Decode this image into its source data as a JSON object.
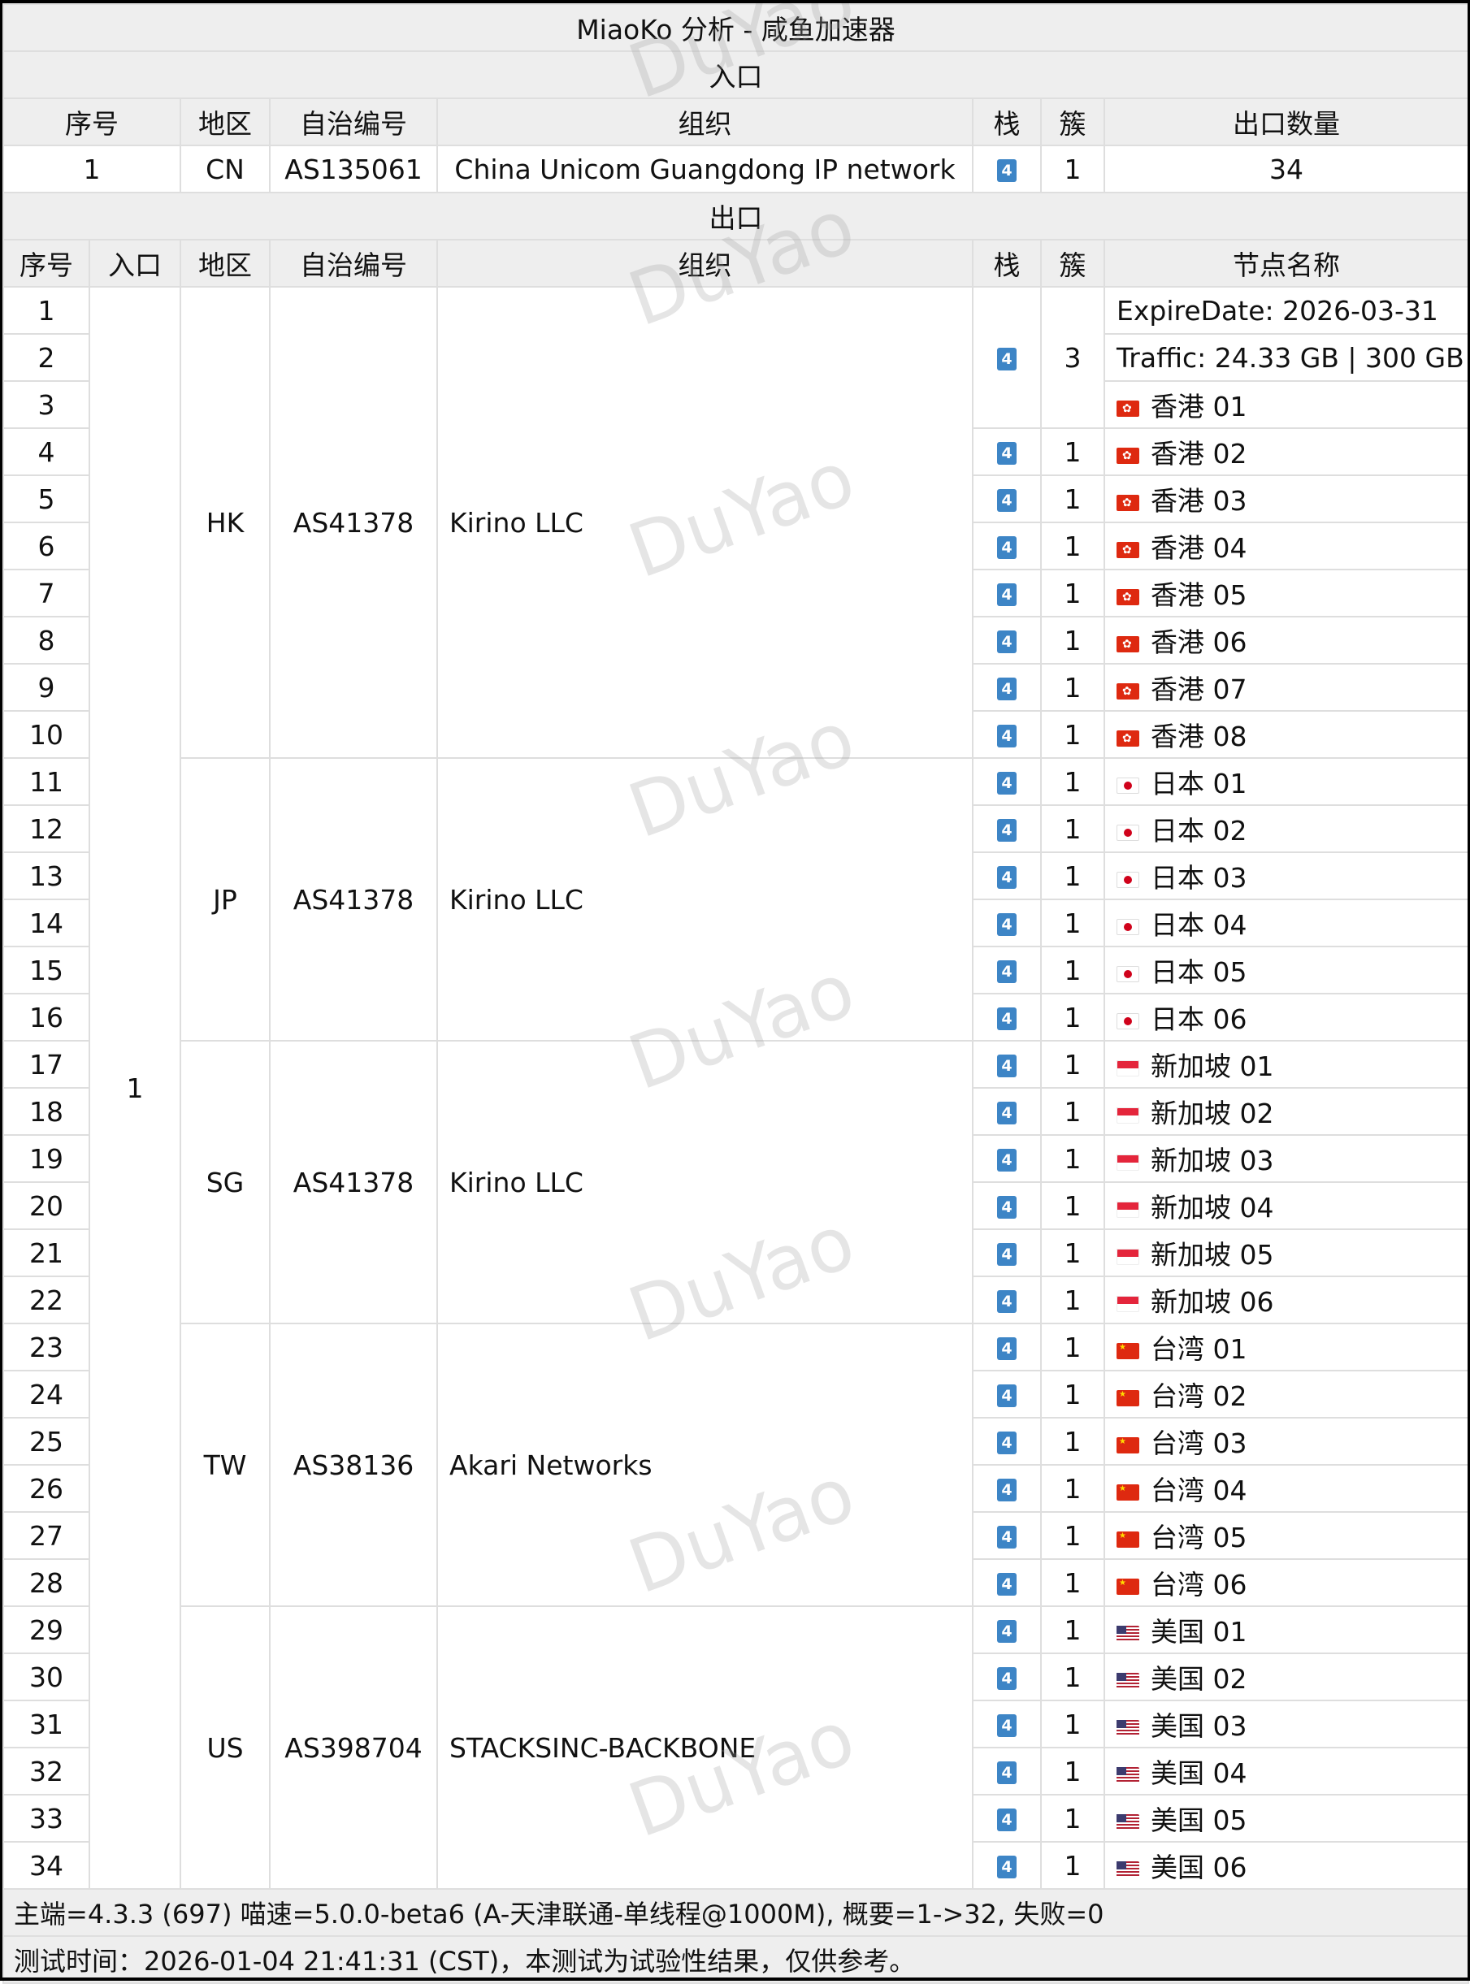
{
  "title": "MiaoKo 分析 - 咸鱼加速器",
  "entry": {
    "section_label": "入口",
    "headers": [
      "序号",
      "地区",
      "自治编号",
      "组织",
      "栈",
      "簇",
      "出口数量"
    ],
    "row": {
      "index": "1",
      "region": "CN",
      "asn": "AS135061",
      "org": "China Unicom Guangdong IP network",
      "stack": "4",
      "cluster": "1",
      "exit_count": "34"
    }
  },
  "exit": {
    "section_label": "出口",
    "headers": [
      "序号",
      "入口",
      "地区",
      "自治编号",
      "组织",
      "栈",
      "簇",
      "节点名称"
    ],
    "entry_value": "1",
    "groups": [
      {
        "region": "HK",
        "asn": "AS41378",
        "org": "Kirino LLC",
        "flag": "hk-flag-icon",
        "start": 1,
        "count": 10
      },
      {
        "region": "JP",
        "asn": "AS41378",
        "org": "Kirino LLC",
        "flag": "jp-flag-icon",
        "start": 11,
        "count": 6
      },
      {
        "region": "SG",
        "asn": "AS41378",
        "org": "Kirino LLC",
        "flag": "sg-flag-icon",
        "start": 17,
        "count": 6
      },
      {
        "region": "TW",
        "asn": "AS38136",
        "org": "Akari Networks",
        "flag": "cn-flag-icon",
        "start": 23,
        "count": 6
      },
      {
        "region": "US",
        "asn": "AS398704",
        "org": "STACKSINC-BACKBONE",
        "flag": "us-flag-icon",
        "start": 29,
        "count": 6
      }
    ],
    "rows": [
      {
        "index": "1",
        "stack": "4",
        "cluster": "3",
        "cluster_span": 3,
        "node": "ExpireDate: 2026-03-31",
        "flag": null
      },
      {
        "index": "2",
        "node": "Traffic: 24.33 GB | 300 GB",
        "flag": null
      },
      {
        "index": "3",
        "node": "香港 01",
        "flag": "hk"
      },
      {
        "index": "4",
        "stack": "4",
        "cluster": "1",
        "node": "香港 02",
        "flag": "hk"
      },
      {
        "index": "5",
        "stack": "4",
        "cluster": "1",
        "node": "香港 03",
        "flag": "hk"
      },
      {
        "index": "6",
        "stack": "4",
        "cluster": "1",
        "node": "香港 04",
        "flag": "hk"
      },
      {
        "index": "7",
        "stack": "4",
        "cluster": "1",
        "node": "香港 05",
        "flag": "hk"
      },
      {
        "index": "8",
        "stack": "4",
        "cluster": "1",
        "node": "香港 06",
        "flag": "hk"
      },
      {
        "index": "9",
        "stack": "4",
        "cluster": "1",
        "node": "香港 07",
        "flag": "hk"
      },
      {
        "index": "10",
        "stack": "4",
        "cluster": "1",
        "node": "香港 08",
        "flag": "hk"
      },
      {
        "index": "11",
        "stack": "4",
        "cluster": "1",
        "node": "日本 01",
        "flag": "jp"
      },
      {
        "index": "12",
        "stack": "4",
        "cluster": "1",
        "node": "日本 02",
        "flag": "jp"
      },
      {
        "index": "13",
        "stack": "4",
        "cluster": "1",
        "node": "日本 03",
        "flag": "jp"
      },
      {
        "index": "14",
        "stack": "4",
        "cluster": "1",
        "node": "日本 04",
        "flag": "jp"
      },
      {
        "index": "15",
        "stack": "4",
        "cluster": "1",
        "node": "日本 05",
        "flag": "jp"
      },
      {
        "index": "16",
        "stack": "4",
        "cluster": "1",
        "node": "日本 06",
        "flag": "jp"
      },
      {
        "index": "17",
        "stack": "4",
        "cluster": "1",
        "node": "新加坡 01",
        "flag": "sg"
      },
      {
        "index": "18",
        "stack": "4",
        "cluster": "1",
        "node": "新加坡 02",
        "flag": "sg"
      },
      {
        "index": "19",
        "stack": "4",
        "cluster": "1",
        "node": "新加坡 03",
        "flag": "sg"
      },
      {
        "index": "20",
        "stack": "4",
        "cluster": "1",
        "node": "新加坡 04",
        "flag": "sg"
      },
      {
        "index": "21",
        "stack": "4",
        "cluster": "1",
        "node": "新加坡 05",
        "flag": "sg"
      },
      {
        "index": "22",
        "stack": "4",
        "cluster": "1",
        "node": "新加坡 06",
        "flag": "sg"
      },
      {
        "index": "23",
        "stack": "4",
        "cluster": "1",
        "node": "台湾 01",
        "flag": "cn"
      },
      {
        "index": "24",
        "stack": "4",
        "cluster": "1",
        "node": "台湾 02",
        "flag": "cn"
      },
      {
        "index": "25",
        "stack": "4",
        "cluster": "1",
        "node": "台湾 03",
        "flag": "cn"
      },
      {
        "index": "26",
        "stack": "4",
        "cluster": "1",
        "node": "台湾 04",
        "flag": "cn"
      },
      {
        "index": "27",
        "stack": "4",
        "cluster": "1",
        "node": "台湾 05",
        "flag": "cn"
      },
      {
        "index": "28",
        "stack": "4",
        "cluster": "1",
        "node": "台湾 06",
        "flag": "cn"
      },
      {
        "index": "29",
        "stack": "4",
        "cluster": "1",
        "node": "美国 01",
        "flag": "us"
      },
      {
        "index": "30",
        "stack": "4",
        "cluster": "1",
        "node": "美国 02",
        "flag": "us"
      },
      {
        "index": "31",
        "stack": "4",
        "cluster": "1",
        "node": "美国 03",
        "flag": "us"
      },
      {
        "index": "32",
        "stack": "4",
        "cluster": "1",
        "node": "美国 04",
        "flag": "us"
      },
      {
        "index": "33",
        "stack": "4",
        "cluster": "1",
        "node": "美国 05",
        "flag": "us"
      },
      {
        "index": "34",
        "stack": "4",
        "cluster": "1",
        "node": "美国 06",
        "flag": "us"
      }
    ]
  },
  "footer": {
    "line1": "主端=4.3.3 (697) 喵速=5.0.0-beta6 (A-天津联通-单线程@1000M), 概要=1->32, 失败=0",
    "line2": "测试时间：2026-01-04 21:41:31 (CST)，本测试为试验性结果，仅供参考。"
  },
  "watermark": "DuYao",
  "colors": {
    "stack_badge": "#3d85c6",
    "header_bg": "#eeeeee",
    "border": "#dedede"
  }
}
